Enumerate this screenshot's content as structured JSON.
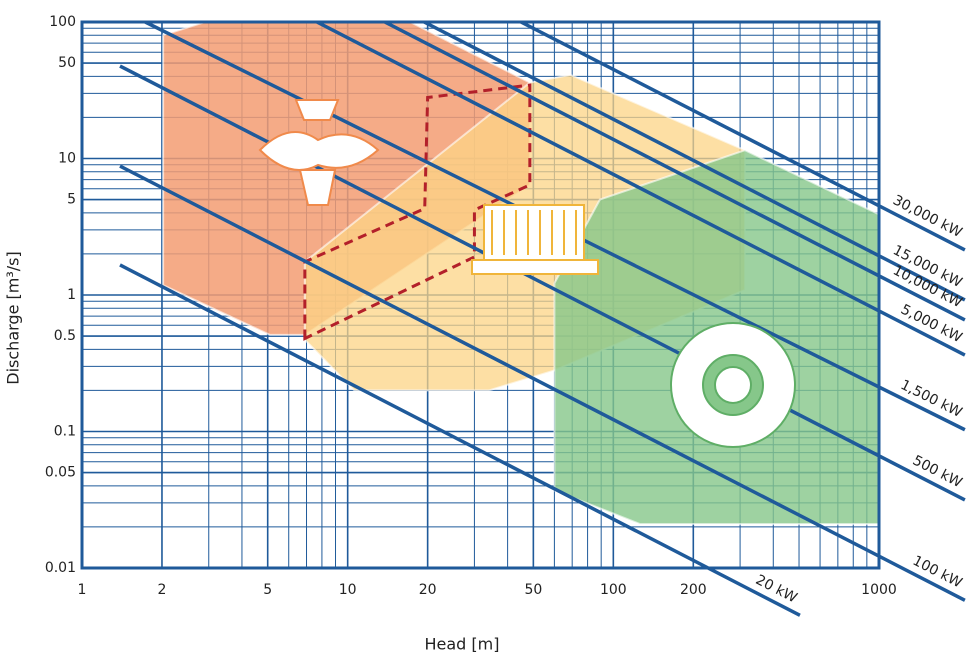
{
  "chart_data": {
    "type": "region",
    "x_label": "Head [m]",
    "y_label": "Discharge [m³/s]",
    "log_x": true,
    "log_y": true,
    "grid": "log-minor",
    "grid_color": "#1f5a9a",
    "xlim": [
      1,
      1000
    ],
    "ylim": [
      0.01,
      100
    ],
    "xticks": [
      1,
      2,
      5,
      10,
      20,
      50,
      100,
      200,
      1000
    ],
    "yticks": [
      0.01,
      0.05,
      0.1,
      0.5,
      1,
      5,
      10,
      50,
      100
    ],
    "regions": [
      {
        "color": "#f39c72",
        "opacity": 0.85,
        "x": [
          2.02,
          2.9,
          17.2,
          48.5,
          48.5,
          6.9,
          5.1,
          2.02
        ],
        "y": [
          80,
          100,
          100,
          36,
          6.4,
          0.51,
          0.51,
          1.18
        ]
      },
      {
        "color": "#fcd486",
        "opacity": 0.75,
        "x": [
          6.9,
          48.5,
          69,
          313,
          313,
          60,
          34,
          10.6,
          6.9
        ],
        "y": [
          1.75,
          36,
          41,
          11.5,
          1.09,
          0.28,
          0.2,
          0.2,
          0.47
        ]
      },
      {
        "color": "#86c78a",
        "opacity": 0.8,
        "x": [
          60,
          89,
          313,
          1000,
          1000,
          126,
          60
        ],
        "y": [
          1.22,
          5,
          11.5,
          3.9,
          0.021,
          0.021,
          0.037
        ]
      },
      {
        "color": "#b3202a",
        "style": "dashed",
        "x": [
          6.9,
          6.9,
          19.5,
          20,
          48.5,
          48.5,
          30,
          30,
          6.9
        ],
        "y": [
          0.48,
          1.75,
          4.3,
          28,
          34.5,
          6.4,
          4.2,
          1.9,
          0.48
        ]
      }
    ],
    "power_lines": [
      {
        "label": "20 kW",
        "color": "#1f5a9a",
        "x": [
          1.39,
          504
        ],
        "y": [
          1.66,
          0.0045
        ]
      },
      {
        "label": "100 kW",
        "color": "#1f5a9a",
        "x": [
          1.39,
          2105
        ],
        "y": [
          8.8,
          0.0058
        ]
      },
      {
        "label": "500 kW",
        "color": "#1f5a9a",
        "x": [
          1.39,
          2105
        ],
        "y": [
          47.6,
          0.0315
        ]
      },
      {
        "label": "1,500 kW",
        "color": "#1f5a9a",
        "x": [
          1.73,
          2105
        ],
        "y": [
          100,
          0.103
        ]
      },
      {
        "label": "5,000 kW",
        "color": "#1f5a9a",
        "x": [
          7.66,
          2105
        ],
        "y": [
          100,
          0.363
        ]
      },
      {
        "label": "10,000 kW",
        "color": "#1f5a9a",
        "x": [
          13.8,
          2105
        ],
        "y": [
          100,
          0.656
        ]
      },
      {
        "label": "15,000 kW",
        "color": "#1f5a9a",
        "x": [
          19.4,
          2105
        ],
        "y": [
          100,
          0.92
        ]
      },
      {
        "label": "30,000 kW",
        "color": "#1f5a9a",
        "x": [
          44.9,
          2105
        ],
        "y": [
          100,
          2.14
        ]
      }
    ]
  }
}
